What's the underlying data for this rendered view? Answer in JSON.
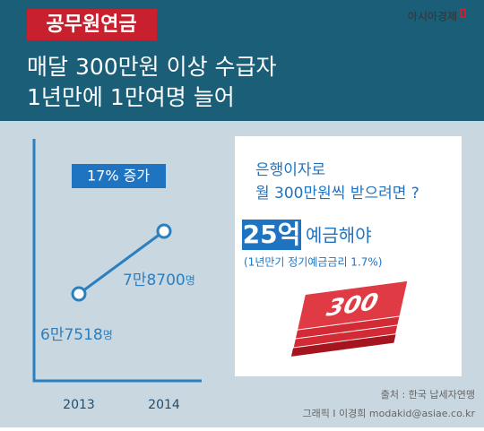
{
  "header": {
    "tag": "공무원연금",
    "line1": "매달 300만원 이상 수급자",
    "line2": "1년만에 1만여명 늘어",
    "logo": "아시아경제"
  },
  "chart_data": {
    "type": "line",
    "badge": "17% 증가",
    "categories": [
      "2013",
      "2014"
    ],
    "values": [
      67518,
      78700
    ],
    "value_labels": [
      "6만7518",
      "7만8700"
    ],
    "value_unit": "명",
    "color": "#2a7fc0"
  },
  "panel": {
    "line1": "은행이자로",
    "line2": "월 300만원씩 받으려면 ?",
    "highlight": "25억",
    "highlight_rest": "예금해야",
    "note": "(1년만기 정기예금금리 1.7%)",
    "graphic_label": "300"
  },
  "footer": {
    "source": "출처 : 한국 납세자연맹",
    "credit": "그래픽 I 이경희 modakid@asiae.co.kr"
  }
}
